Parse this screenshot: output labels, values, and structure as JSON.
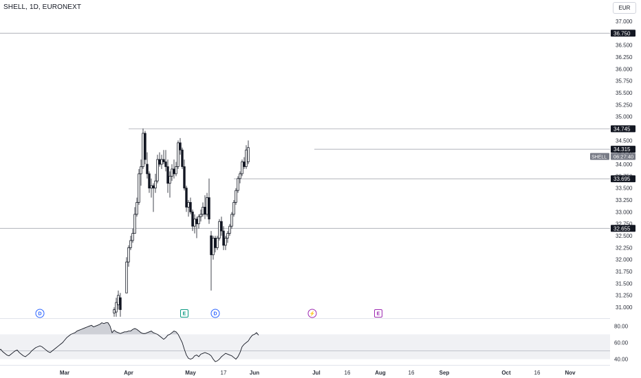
{
  "header": {
    "title": "SHELL, 1D, EURONEXT",
    "currency": "EUR"
  },
  "chart_data": {
    "type": "candlestick",
    "symbol": "SHELL",
    "interval": "1D",
    "exchange": "EURONEXT",
    "currency": "EUR",
    "price_axis": {
      "ylim": [
        30.9,
        37.1
      ],
      "ticks": [
        "37.000",
        "36.750",
        "36.500",
        "36.250",
        "36.000",
        "35.750",
        "35.500",
        "35.250",
        "35.000",
        "34.750",
        "34.500",
        "34.250",
        "34.000",
        "33.750",
        "33.500",
        "33.250",
        "33.000",
        "32.750",
        "32.500",
        "32.250",
        "32.000",
        "31.750",
        "31.500",
        "31.250",
        "31.000"
      ]
    },
    "x_axis": {
      "labels": [
        {
          "text": "Mar",
          "bold": true,
          "day": -35
        },
        {
          "text": "Apr",
          "bold": true,
          "day": -4
        },
        {
          "text": "May",
          "bold": true,
          "day": 26
        },
        {
          "text": "17",
          "bold": false,
          "day": 42
        },
        {
          "text": "Jun",
          "bold": true,
          "day": 57
        },
        {
          "text": "Jul",
          "bold": true,
          "day": 87
        },
        {
          "text": "16",
          "bold": false,
          "day": 102
        },
        {
          "text": "Aug",
          "bold": true,
          "day": 118
        },
        {
          "text": "16",
          "bold": false,
          "day": 133
        },
        {
          "text": "Sep",
          "bold": true,
          "day": 149
        },
        {
          "text": "Oct",
          "bold": true,
          "day": 179
        },
        {
          "text": "16",
          "bold": false,
          "day": 194
        },
        {
          "text": "Nov",
          "bold": true,
          "day": 210
        }
      ]
    },
    "horizontal_levels": [
      {
        "value": 36.75,
        "label": "36.750",
        "from_day": null
      },
      {
        "value": 34.745,
        "label": "34.745",
        "from_day": -4
      },
      {
        "value": 34.315,
        "label": "34.315",
        "from_day": 86
      },
      {
        "value": 33.695,
        "label": "33.695",
        "from_day": 47
      },
      {
        "value": 32.655,
        "label": "32.655",
        "from_day": null
      }
    ],
    "last_price": {
      "symbol": "SHELL",
      "countdown": "06:27:40",
      "value": 34.25
    },
    "candles": [
      {
        "day": -11,
        "open": 30.88,
        "high": 31.0,
        "low": 30.8,
        "close": 30.95
      },
      {
        "day": -10,
        "open": 30.9,
        "high": 31.2,
        "low": 30.8,
        "close": 31.1
      },
      {
        "day": -9,
        "open": 31.05,
        "high": 31.35,
        "low": 30.95,
        "close": 31.25
      },
      {
        "day": -8,
        "open": 31.2,
        "high": 31.3,
        "low": 30.8,
        "close": 30.95
      },
      {
        "day": -5,
        "open": 31.3,
        "high": 32.05,
        "low": 31.3,
        "close": 31.95
      },
      {
        "day": -4,
        "open": 31.95,
        "high": 32.3,
        "low": 31.85,
        "close": 32.25
      },
      {
        "day": -3,
        "open": 32.25,
        "high": 32.5,
        "low": 32.2,
        "close": 32.4
      },
      {
        "day": -2,
        "open": 32.4,
        "high": 32.65,
        "low": 32.35,
        "close": 32.55
      },
      {
        "day": -1,
        "open": 32.55,
        "high": 33.1,
        "low": 32.55,
        "close": 32.95
      },
      {
        "day": 0,
        "open": 32.95,
        "high": 33.3,
        "low": 32.9,
        "close": 33.2
      },
      {
        "day": 1,
        "open": 33.2,
        "high": 33.9,
        "low": 33.15,
        "close": 33.8
      },
      {
        "day": 2,
        "open": 33.8,
        "high": 34.1,
        "low": 33.55,
        "close": 33.95
      },
      {
        "day": 3,
        "open": 33.95,
        "high": 34.75,
        "low": 33.9,
        "close": 34.65
      },
      {
        "day": 4,
        "open": 34.65,
        "high": 34.7,
        "low": 34.0,
        "close": 34.1
      },
      {
        "day": 5,
        "open": 34.0,
        "high": 34.25,
        "low": 33.7,
        "close": 33.8
      },
      {
        "day": 6,
        "open": 33.8,
        "high": 33.85,
        "low": 33.4,
        "close": 33.5
      },
      {
        "day": 7,
        "open": 33.5,
        "high": 33.7,
        "low": 33.3,
        "close": 33.55
      },
      {
        "day": 8,
        "open": 33.55,
        "high": 33.6,
        "low": 33.0,
        "close": 33.5
      },
      {
        "day": 9,
        "open": 33.5,
        "high": 33.8,
        "low": 33.4,
        "close": 33.65
      },
      {
        "day": 10,
        "open": 33.65,
        "high": 34.2,
        "low": 33.6,
        "close": 34.1
      },
      {
        "day": 11,
        "open": 34.1,
        "high": 34.25,
        "low": 33.95,
        "close": 34.0
      },
      {
        "day": 12,
        "open": 34.0,
        "high": 34.2,
        "low": 33.9,
        "close": 34.1
      },
      {
        "day": 13,
        "open": 34.1,
        "high": 34.3,
        "low": 34.0,
        "close": 34.05
      },
      {
        "day": 14,
        "open": 34.05,
        "high": 34.3,
        "low": 33.85,
        "close": 33.95
      },
      {
        "day": 15,
        "open": 33.95,
        "high": 34.1,
        "low": 33.4,
        "close": 33.6
      },
      {
        "day": 16,
        "open": 33.6,
        "high": 33.85,
        "low": 33.3,
        "close": 33.75
      },
      {
        "day": 17,
        "open": 33.75,
        "high": 34.0,
        "low": 33.65,
        "close": 33.9
      },
      {
        "day": 18,
        "open": 33.9,
        "high": 34.1,
        "low": 33.7,
        "close": 33.8
      },
      {
        "day": 19,
        "open": 33.8,
        "high": 34.05,
        "low": 33.75,
        "close": 33.95
      },
      {
        "day": 20,
        "open": 33.95,
        "high": 34.5,
        "low": 33.9,
        "close": 34.45
      },
      {
        "day": 21,
        "open": 34.45,
        "high": 34.55,
        "low": 34.2,
        "close": 34.3
      },
      {
        "day": 22,
        "open": 34.3,
        "high": 34.35,
        "low": 33.9,
        "close": 33.95
      },
      {
        "day": 23,
        "open": 33.95,
        "high": 34.1,
        "low": 33.45,
        "close": 33.5
      },
      {
        "day": 24,
        "open": 33.5,
        "high": 33.55,
        "low": 33.0,
        "close": 33.1
      },
      {
        "day": 25,
        "open": 33.1,
        "high": 33.25,
        "low": 32.9,
        "close": 33.2
      },
      {
        "day": 26,
        "open": 33.2,
        "high": 33.3,
        "low": 32.95,
        "close": 33.0
      },
      {
        "day": 27,
        "open": 33.0,
        "high": 33.05,
        "low": 32.6,
        "close": 32.7
      },
      {
        "day": 28,
        "open": 32.7,
        "high": 32.95,
        "low": 32.55,
        "close": 32.85
      },
      {
        "day": 29,
        "open": 32.85,
        "high": 32.9,
        "low": 32.45,
        "close": 32.75
      },
      {
        "day": 30,
        "open": 32.75,
        "high": 32.95,
        "low": 32.65,
        "close": 32.9
      },
      {
        "day": 31,
        "open": 32.9,
        "high": 33.05,
        "low": 32.8,
        "close": 32.95
      },
      {
        "day": 32,
        "open": 32.95,
        "high": 33.2,
        "low": 32.9,
        "close": 33.1
      },
      {
        "day": 33,
        "open": 33.1,
        "high": 33.35,
        "low": 32.85,
        "close": 32.95
      },
      {
        "day": 34,
        "open": 32.95,
        "high": 33.4,
        "low": 32.9,
        "close": 33.3
      },
      {
        "day": 35,
        "open": 33.3,
        "high": 33.7,
        "low": 32.75,
        "close": 32.85
      },
      {
        "day": 36,
        "open": 32.5,
        "high": 32.6,
        "low": 31.35,
        "close": 32.1
      },
      {
        "day": 37,
        "open": 32.1,
        "high": 32.5,
        "low": 32.0,
        "close": 32.45
      },
      {
        "day": 38,
        "open": 32.45,
        "high": 32.5,
        "low": 32.15,
        "close": 32.25
      },
      {
        "day": 39,
        "open": 32.25,
        "high": 32.5,
        "low": 32.2,
        "close": 32.45
      },
      {
        "day": 40,
        "open": 32.45,
        "high": 32.85,
        "low": 32.4,
        "close": 32.8
      },
      {
        "day": 41,
        "open": 32.8,
        "high": 32.9,
        "low": 32.5,
        "close": 32.6
      },
      {
        "day": 42,
        "open": 32.6,
        "high": 32.7,
        "low": 32.2,
        "close": 32.3
      },
      {
        "day": 43,
        "open": 32.3,
        "high": 32.5,
        "low": 32.2,
        "close": 32.45
      },
      {
        "day": 44,
        "open": 32.45,
        "high": 32.6,
        "low": 32.35,
        "close": 32.55
      },
      {
        "day": 45,
        "open": 32.55,
        "high": 32.75,
        "low": 32.5,
        "close": 32.7
      },
      {
        "day": 46,
        "open": 32.7,
        "high": 33.0,
        "low": 32.65,
        "close": 32.95
      },
      {
        "day": 47,
        "open": 32.95,
        "high": 33.25,
        "low": 32.9,
        "close": 33.2
      },
      {
        "day": 48,
        "open": 33.2,
        "high": 33.5,
        "low": 33.15,
        "close": 33.45
      },
      {
        "day": 49,
        "open": 33.45,
        "high": 33.75,
        "low": 33.4,
        "close": 33.7
      },
      {
        "day": 50,
        "open": 33.7,
        "high": 33.85,
        "low": 33.6,
        "close": 33.8
      },
      {
        "day": 51,
        "open": 33.8,
        "high": 34.1,
        "low": 33.75,
        "close": 34.05
      },
      {
        "day": 52,
        "open": 34.05,
        "high": 34.15,
        "low": 33.9,
        "close": 33.95
      },
      {
        "day": 53,
        "open": 33.95,
        "high": 34.4,
        "low": 33.9,
        "close": 34.3
      },
      {
        "day": 54,
        "open": 34.05,
        "high": 34.5,
        "low": 34.0,
        "close": 34.35
      }
    ],
    "events": [
      {
        "type": "dividend",
        "glyph": "D",
        "day": -47,
        "color": "#2962ff"
      },
      {
        "type": "earnings",
        "glyph": "E",
        "day": 23,
        "color": "#089981"
      },
      {
        "type": "dividend",
        "glyph": "D",
        "day": 38,
        "color": "#2962ff"
      },
      {
        "type": "split",
        "glyph": "⚡",
        "day": 85,
        "color": "#9c27b0"
      },
      {
        "type": "earnings",
        "glyph": "E",
        "day": 117,
        "color": "#9c27b0"
      }
    ],
    "indicator": {
      "type": "line",
      "name": "oscillator",
      "ylim": [
        33,
        87
      ],
      "ticks": [
        "80.00",
        "60.00",
        "40.00"
      ],
      "band": [
        40,
        70
      ],
      "midline": 50,
      "start_day": -72,
      "values": [
        49,
        48,
        47,
        46,
        48,
        50,
        52,
        49,
        47,
        45,
        44,
        46,
        48,
        50,
        51,
        48,
        46,
        44,
        43,
        45,
        47,
        50,
        52,
        54,
        55,
        56,
        55,
        53,
        51,
        49,
        48,
        50,
        52,
        54,
        56,
        58,
        60,
        63,
        66,
        68,
        70,
        71,
        72,
        74,
        75,
        76,
        77,
        78,
        79,
        80,
        81,
        79,
        80,
        81,
        82,
        84,
        83,
        84,
        84,
        80,
        72,
        75,
        73,
        72,
        71,
        72,
        73,
        73,
        74,
        74,
        76,
        77,
        76,
        74,
        72,
        71,
        71,
        72,
        73,
        74,
        72,
        71,
        70,
        68,
        66,
        64,
        66,
        69,
        70,
        72,
        74,
        73,
        70,
        65,
        60,
        52,
        45,
        41,
        40,
        41,
        44,
        45,
        43,
        46,
        47,
        48,
        47,
        46,
        44,
        40,
        37,
        38,
        40,
        43,
        45,
        47,
        46,
        45,
        44,
        42,
        40,
        43,
        48,
        55,
        58,
        60,
        62,
        66,
        69,
        70,
        72,
        69
      ]
    }
  }
}
